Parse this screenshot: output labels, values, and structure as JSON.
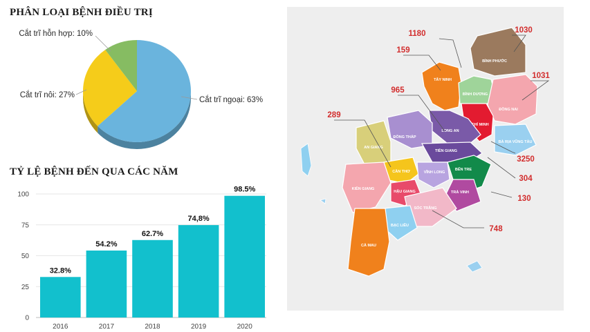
{
  "pie": {
    "title": "PHÂN LOẠI BỆNH ĐIỀU TRỊ"
  },
  "bars": {
    "title": "TỶ LỆ BỆNH ĐẾN QUA CÁC NĂM"
  },
  "chart_data": [
    {
      "type": "pie",
      "title": "PHÂN LOẠI BỆNH ĐIỀU TRỊ",
      "slices": [
        {
          "label": "Cắt trĩ ngoại: 63%",
          "value": 63,
          "color": "#6ab4dd"
        },
        {
          "label": "Cắt trĩ nôi: 27%",
          "value": 27,
          "color": "#f5cc1a"
        },
        {
          "label": "Cắt trĩ hỗn hợp: 10%",
          "value": 10,
          "color": "#86bc62"
        }
      ]
    },
    {
      "type": "bar",
      "title": "TỶ LỆ BỆNH ĐẾN QUA CÁC NĂM",
      "categories": [
        "2016",
        "2017",
        "2018",
        "2019",
        "2020"
      ],
      "values": [
        32.8,
        54.2,
        62.7,
        74.8,
        98.5
      ],
      "data_labels": [
        "32.8%",
        "54.2%",
        "62.7%",
        "74,8%",
        "98.5%"
      ],
      "yticks": [
        "0",
        "25",
        "50",
        "75",
        "100"
      ],
      "ylim": [
        0,
        100
      ],
      "color": "#12c0cd",
      "grid": true
    }
  ],
  "map": {
    "provinces": [
      {
        "name": "BÌNH PHƯỚC",
        "color": "#9b7a5e"
      },
      {
        "name": "TÂY NINH",
        "color": "#f0811c"
      },
      {
        "name": "BÌNH DƯƠNG",
        "color": "#9fd49a"
      },
      {
        "name": "ĐỒNG NAI",
        "color": "#f4a6ae"
      },
      {
        "name": "TP HỒ CHÍ MINH",
        "color": "#e31b30"
      },
      {
        "name": "BÀ RỊA VŨNG TÀU",
        "color": "#9ad0f0"
      },
      {
        "name": "LONG AN",
        "color": "#7a5aa8"
      },
      {
        "name": "ĐỒNG THÁP",
        "color": "#a88fd0"
      },
      {
        "name": "AN GIANG",
        "color": "#d8cf7a"
      },
      {
        "name": "TIỀN GIANG",
        "color": "#6a4a9c"
      },
      {
        "name": "BẾN TRE",
        "color": "#128a4a"
      },
      {
        "name": "CẦN THƠ",
        "color": "#f5c51c"
      },
      {
        "name": "VĨNH LONG",
        "color": "#b8a4e0"
      },
      {
        "name": "TRÀ VINH",
        "color": "#b04aa0"
      },
      {
        "name": "KIÊN GIANG",
        "color": "#f4a6ae"
      },
      {
        "name": "HẬU GIANG",
        "color": "#e84a6a"
      },
      {
        "name": "SÓC TRĂNG",
        "color": "#f2b8c8"
      },
      {
        "name": "BẠC LIÊU",
        "color": "#8fd0f0"
      },
      {
        "name": "CÀ MAU",
        "color": "#f0811c"
      }
    ],
    "counts": [
      "1180",
      "1030",
      "159",
      "1031",
      "965",
      "289",
      "3250",
      "304",
      "130",
      "748"
    ]
  }
}
